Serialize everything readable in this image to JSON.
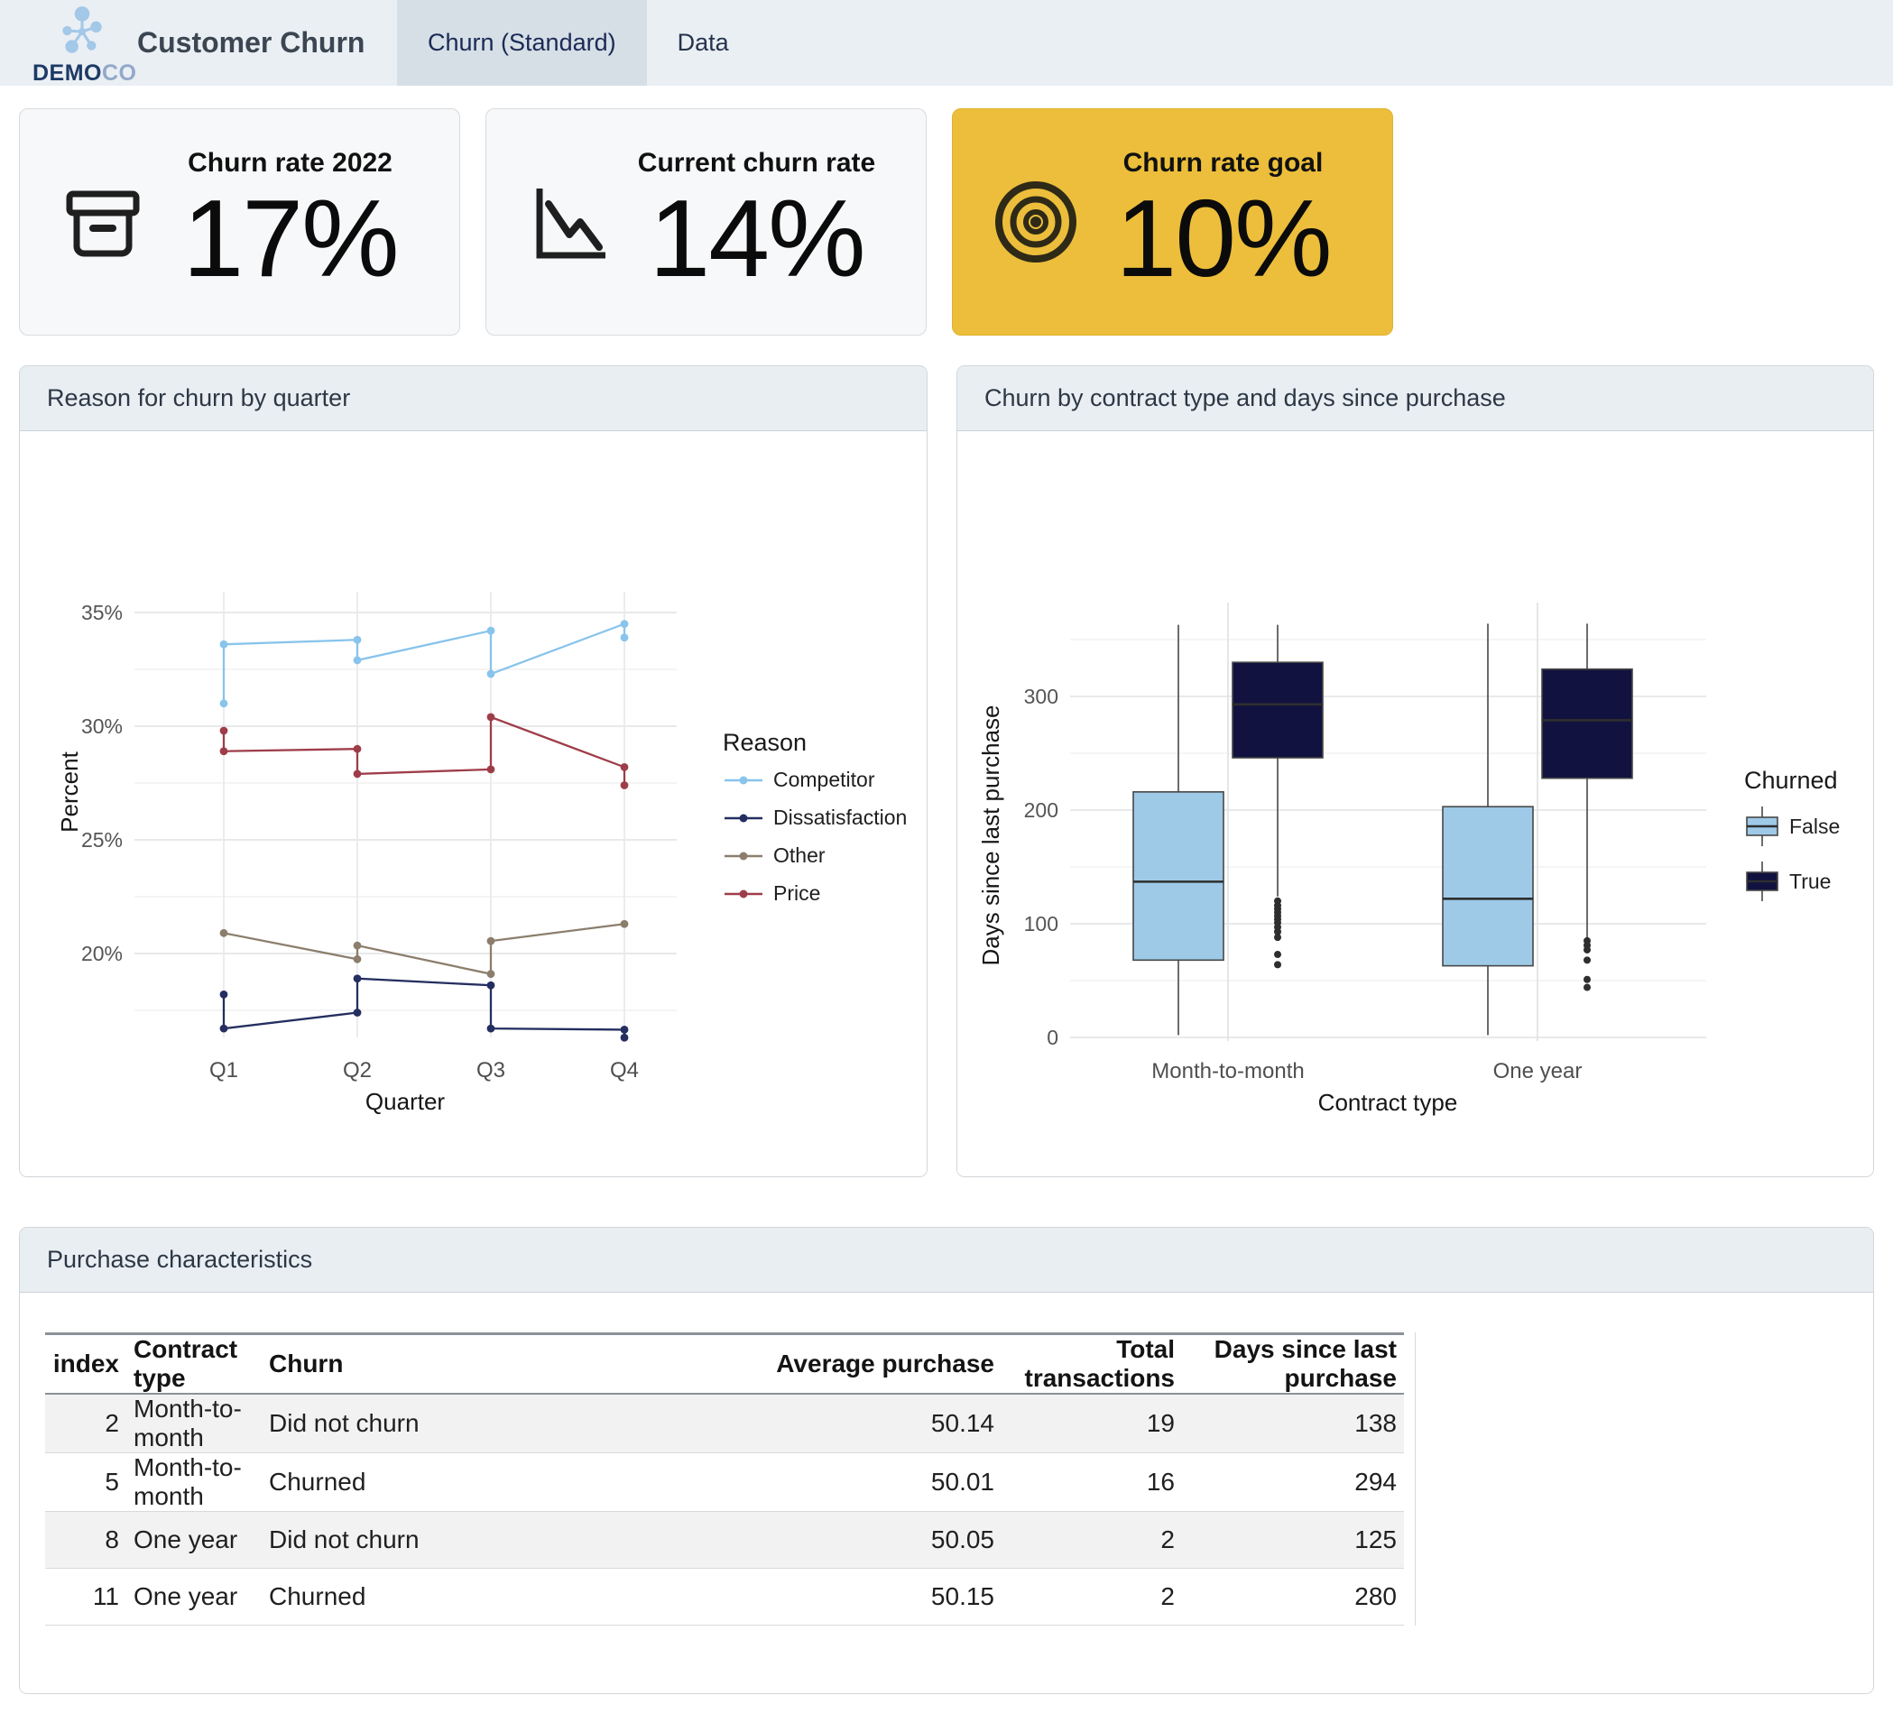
{
  "header": {
    "brand_bold": "DEMO",
    "brand_light": "CO",
    "title": "Customer Churn",
    "tabs": [
      {
        "label": "Churn (Standard)",
        "active": true
      },
      {
        "label": "Data",
        "active": false
      }
    ]
  },
  "colors": {
    "header_bg": "#eaeff4",
    "active_tab_bg": "#d6dfe6",
    "goal_card_bg": "#ecbe3b",
    "panel_header_bg": "#e9eef3",
    "navy": "#1b2a55"
  },
  "kpis": [
    {
      "label": "Churn rate 2022",
      "value": "17%",
      "icon": "archive-box-icon",
      "variant": "default"
    },
    {
      "label": "Current churn rate",
      "value": "14%",
      "icon": "chart-line-down-icon",
      "variant": "default"
    },
    {
      "label": "Churn rate goal",
      "value": "10%",
      "icon": "target-icon",
      "variant": "highlight"
    }
  ],
  "line_panel": {
    "title": "Reason for churn by quarter"
  },
  "box_panel": {
    "title": "Churn by contract type and days since purchase"
  },
  "table_panel": {
    "title": "Purchase characteristics",
    "columns": [
      "index",
      "Contract type",
      "Churn",
      "Average purchase",
      "Total transactions",
      "Days since last purchase"
    ],
    "rows": [
      [
        "2",
        "Month-to-month",
        "Did not churn",
        "50.14",
        "19",
        "138"
      ],
      [
        "5",
        "Month-to-month",
        "Churned",
        "50.01",
        "16",
        "294"
      ],
      [
        "8",
        "One year",
        "Did not churn",
        "50.05",
        "2",
        "125"
      ],
      [
        "11",
        "One year",
        "Churned",
        "50.15",
        "2",
        "280"
      ]
    ]
  },
  "chart_data": [
    {
      "type": "line",
      "title": "Reason for churn by quarter",
      "xlabel": "Quarter",
      "ylabel": "Percent",
      "x_categories": [
        "Q1",
        "Q2",
        "Q3",
        "Q4"
      ],
      "ylim": [
        16,
        35.5
      ],
      "yticks": [
        35,
        30,
        25,
        20
      ],
      "ytick_labels": [
        "35%",
        "30%",
        "25%",
        "20%"
      ],
      "yticks_minor": [
        32.5,
        27.5,
        22.5,
        17.5
      ],
      "grid": true,
      "legend_title": "Reason",
      "legend_position": "right",
      "series": [
        {
          "name": "Competitor",
          "color": "#88c4ec",
          "points": [
            [
              "Q1",
              31.0
            ],
            [
              "Q1",
              33.6
            ],
            [
              "Q2",
              33.8
            ],
            [
              "Q2",
              32.9
            ],
            [
              "Q3",
              34.2
            ],
            [
              "Q3",
              32.3
            ],
            [
              "Q4",
              34.5
            ],
            [
              "Q4",
              33.9
            ]
          ]
        },
        {
          "name": "Dissatisfaction",
          "color": "#242e60",
          "points": [
            [
              "Q1",
              18.2
            ],
            [
              "Q1",
              16.7
            ],
            [
              "Q2",
              17.4
            ],
            [
              "Q2",
              18.9
            ],
            [
              "Q3",
              18.6
            ],
            [
              "Q3",
              16.7
            ],
            [
              "Q4",
              16.65
            ],
            [
              "Q4",
              16.3
            ]
          ]
        },
        {
          "name": "Other",
          "color": "#8c7e6c",
          "points": [
            [
              "Q1",
              20.9
            ],
            [
              "Q2",
              19.75
            ],
            [
              "Q2",
              20.35
            ],
            [
              "Q3",
              19.1
            ],
            [
              "Q3",
              20.55
            ],
            [
              "Q4",
              21.3
            ]
          ]
        },
        {
          "name": "Price",
          "color": "#9e3d49",
          "points": [
            [
              "Q1",
              29.8
            ],
            [
              "Q1",
              28.9
            ],
            [
              "Q2",
              29.0
            ],
            [
              "Q2",
              27.9
            ],
            [
              "Q3",
              28.1
            ],
            [
              "Q3",
              30.4
            ],
            [
              "Q4",
              28.2
            ],
            [
              "Q4",
              27.4
            ]
          ]
        }
      ]
    },
    {
      "type": "boxplot",
      "title": "Churn by contract type and days since purchase",
      "xlabel": "Contract type",
      "ylabel": "Days since last purchase",
      "ylim": [
        -20,
        390
      ],
      "yticks": [
        300,
        200,
        100,
        0
      ],
      "ytick_labels": [
        "300",
        "200",
        "100",
        "0"
      ],
      "yticks_minor": [
        350,
        250,
        150,
        50
      ],
      "grid": true,
      "legend_title": "Churned",
      "legend_position": "right",
      "groups": [
        "Month-to-month",
        "One year"
      ],
      "series": [
        {
          "name": "False",
          "color": "#9ecae8",
          "boxes": [
            {
              "group": "Month-to-month",
              "whisker_low": 2,
              "q1": 68,
              "median": 137,
              "q3": 216,
              "whisker_high": 363,
              "outliers": []
            },
            {
              "group": "One year",
              "whisker_low": 2,
              "q1": 63,
              "median": 122,
              "q3": 203,
              "whisker_high": 364,
              "outliers": []
            }
          ]
        },
        {
          "name": "True",
          "color": "#11123f",
          "boxes": [
            {
              "group": "Month-to-month",
              "whisker_low": 124,
              "q1": 246,
              "median": 293,
              "q3": 330,
              "whisker_high": 363,
              "outliers": [
                120,
                116,
                113,
                110,
                107,
                104,
                101,
                97,
                93,
                88,
                73,
                64
              ]
            },
            {
              "group": "One year",
              "whisker_low": 88,
              "q1": 228,
              "median": 279,
              "q3": 324,
              "whisker_high": 364,
              "outliers": [
                85,
                81,
                77,
                68,
                51,
                44
              ]
            }
          ]
        }
      ]
    }
  ]
}
